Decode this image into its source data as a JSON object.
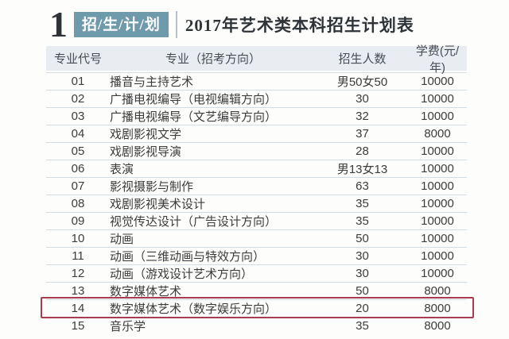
{
  "header": {
    "number": "1",
    "badge": "招/生/计/划",
    "title": "2017年艺术类本科招生计划表"
  },
  "table": {
    "columns": [
      "专业代号",
      "专业（招考方向）",
      "招生人数",
      "学费(元/年)"
    ],
    "rows": [
      {
        "code": "01",
        "major": "播音与主持艺术",
        "enrollment": "男50女50",
        "tuition": "10000",
        "highlight": false
      },
      {
        "code": "02",
        "major": "广播电视编导（电视编辑方向）",
        "enrollment": "30",
        "tuition": "10000",
        "highlight": false
      },
      {
        "code": "03",
        "major": "广播电视编导（文艺编导方向）",
        "enrollment": "32",
        "tuition": "10000",
        "highlight": false
      },
      {
        "code": "04",
        "major": "戏剧影视文学",
        "enrollment": "37",
        "tuition": "8000",
        "highlight": false
      },
      {
        "code": "05",
        "major": "戏剧影视导演",
        "enrollment": "28",
        "tuition": "10000",
        "highlight": false
      },
      {
        "code": "06",
        "major": "表演",
        "enrollment": "男13女13",
        "tuition": "10000",
        "highlight": false
      },
      {
        "code": "07",
        "major": "影视摄影与制作",
        "enrollment": "63",
        "tuition": "10000",
        "highlight": false
      },
      {
        "code": "08",
        "major": "戏剧影视美术设计",
        "enrollment": "35",
        "tuition": "10000",
        "highlight": false
      },
      {
        "code": "09",
        "major": "视觉传达设计（广告设计方向）",
        "enrollment": "35",
        "tuition": "10000",
        "highlight": false
      },
      {
        "code": "10",
        "major": "动画",
        "enrollment": "50",
        "tuition": "10000",
        "highlight": false
      },
      {
        "code": "11",
        "major": "动画（三维动画与特效方向）",
        "enrollment": "30",
        "tuition": "10000",
        "highlight": false
      },
      {
        "code": "12",
        "major": "动画（游戏设计艺术方向）",
        "enrollment": "30",
        "tuition": "10000",
        "highlight": false
      },
      {
        "code": "13",
        "major": "数字媒体艺术",
        "enrollment": "50",
        "tuition": "8000",
        "highlight": false
      },
      {
        "code": "14",
        "major": "数字媒体艺术（数字娱乐方向）",
        "enrollment": "20",
        "tuition": "8000",
        "highlight": true
      },
      {
        "code": "15",
        "major": "音乐学",
        "enrollment": "35",
        "tuition": "8000",
        "highlight": false
      }
    ]
  },
  "colors": {
    "badge_background": "#6f9aab",
    "highlight_border": "#a83d52",
    "header_row_background": "#e9edf2"
  }
}
